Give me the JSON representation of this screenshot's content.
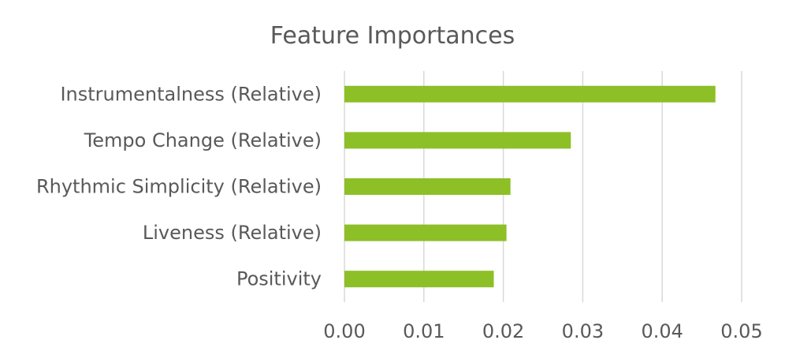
{
  "chart_data": {
    "type": "bar",
    "orientation": "horizontal",
    "title": "Feature Importances",
    "xlabel": "",
    "ylabel": "",
    "categories": [
      "Instrumentalness (Relative)",
      "Tempo Change (Relative)",
      "Rhythmic Simplicity (Relative)",
      "Liveness (Relative)",
      "Positivity"
    ],
    "values": [
      0.0467,
      0.0285,
      0.0209,
      0.0204,
      0.0188
    ],
    "xlim": [
      0,
      0.05
    ],
    "xticks": [
      "0.00",
      "0.01",
      "0.02",
      "0.03",
      "0.04",
      "0.05"
    ],
    "grid": true,
    "legend": "none",
    "bar_color": "#8dbf27",
    "text_color": "#595959",
    "grid_color": "#d9d9d9"
  }
}
